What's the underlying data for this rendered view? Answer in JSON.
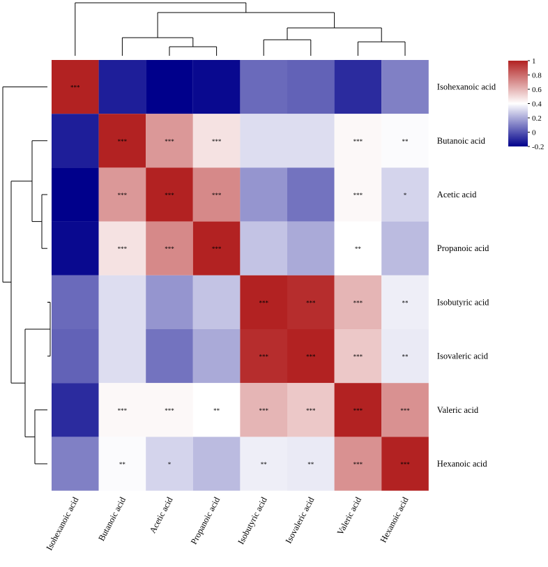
{
  "chart_data": {
    "type": "heatmap",
    "title": "",
    "rows": [
      "Isohexanoic acid",
      "Butanoic acid",
      "Acetic acid",
      "Propanoic acid",
      "Isobutyric acid",
      "Isovaleric acid",
      "Valeric acid",
      "Hexanoic acid"
    ],
    "columns": [
      "Isohexanoic acid",
      "Butanoic acid",
      "Acetic acid",
      "Propanoic acid",
      "Isobutyric acid",
      "Isovaleric acid",
      "Valeric acid",
      "Hexanoic acid"
    ],
    "values": [
      [
        1.0,
        -0.13,
        -0.2,
        -0.18,
        0.05,
        0.03,
        -0.1,
        0.1
      ],
      [
        -0.13,
        1.0,
        0.68,
        0.48,
        0.32,
        0.32,
        0.42,
        0.39
      ],
      [
        -0.2,
        0.68,
        1.0,
        0.72,
        0.15,
        0.07,
        0.42,
        0.3
      ],
      [
        -0.18,
        0.48,
        0.72,
        1.0,
        0.26,
        0.2,
        0.4,
        0.24
      ],
      [
        0.05,
        0.32,
        0.15,
        0.26,
        1.0,
        0.97,
        0.6,
        0.36
      ],
      [
        0.03,
        0.32,
        0.07,
        0.2,
        0.97,
        1.0,
        0.55,
        0.35
      ],
      [
        -0.1,
        0.42,
        0.42,
        0.4,
        0.6,
        0.55,
        1.0,
        0.7
      ],
      [
        0.1,
        0.39,
        0.3,
        0.24,
        0.36,
        0.35,
        0.7,
        1.0
      ]
    ],
    "significance": [
      [
        "***",
        "",
        "",
        "",
        "",
        "",
        "",
        ""
      ],
      [
        "",
        "***",
        "***",
        "***",
        "",
        "",
        "***",
        "**"
      ],
      [
        "",
        "***",
        "***",
        "***",
        "",
        "",
        "***",
        "*"
      ],
      [
        "",
        "***",
        "***",
        "***",
        "",
        "",
        "**",
        ""
      ],
      [
        "",
        "",
        "",
        "",
        "***",
        "***",
        "***",
        "**"
      ],
      [
        "",
        "",
        "",
        "",
        "***",
        "***",
        "***",
        "**"
      ],
      [
        "",
        "***",
        "***",
        "**",
        "***",
        "***",
        "***",
        "***"
      ],
      [
        "",
        "**",
        "*",
        "",
        "**",
        "**",
        "***",
        "***"
      ]
    ],
    "colorbar": {
      "min": -0.2,
      "max": 1,
      "ticks": [
        "1",
        "0.8",
        "0.6",
        "0.4",
        "0.2",
        "0",
        "-0.2"
      ],
      "colors": {
        "low": "#00008b",
        "mid": "#ffffff",
        "high": "#b22222"
      }
    },
    "dendrogram": "hierarchical clustering shown on rows (left) and columns (top)"
  }
}
